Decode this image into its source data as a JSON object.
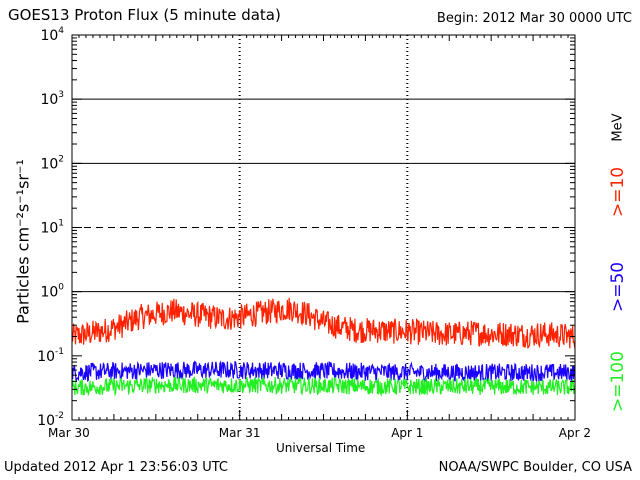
{
  "header": {
    "title": "GOES13 Proton Flux (5 minute data)",
    "begin": "Begin: 2012 Mar 30 0000 UTC"
  },
  "footer": {
    "updated": "Updated 2012 Apr  1 23:56:03 UTC",
    "credit": "NOAA/SWPC Boulder, CO USA"
  },
  "chart_data": {
    "type": "line",
    "title": "GOES13 Proton Flux (5 minute data)",
    "xlabel": "Universal Time",
    "ylabel": "Particles cm⁻²s⁻¹sr⁻¹",
    "yscale": "log",
    "ylim": [
      0.01,
      10000
    ],
    "xlim_days": [
      0,
      3
    ],
    "x_ticks": [
      {
        "day": 0,
        "label": "Mar 30"
      },
      {
        "day": 1,
        "label": "Mar 31"
      },
      {
        "day": 2,
        "label": "Apr 1"
      },
      {
        "day": 3,
        "label": "Apr 2"
      }
    ],
    "y_ticks": [
      {
        "value": 0.01,
        "base": "10",
        "exp": "-2"
      },
      {
        "value": 0.1,
        "base": "10",
        "exp": "-1"
      },
      {
        "value": 1,
        "base": "10",
        "exp": "0"
      },
      {
        "value": 10,
        "base": "10",
        "exp": "1"
      },
      {
        "value": 100,
        "base": "10",
        "exp": "2"
      },
      {
        "value": 1000,
        "base": "10",
        "exp": "3"
      },
      {
        "value": 10000,
        "base": "10",
        "exp": "4"
      }
    ],
    "thresholds": [
      {
        "value": 1,
        "style": "solid"
      },
      {
        "value": 10,
        "style": "dashed"
      },
      {
        "value": 100,
        "style": "solid"
      },
      {
        "value": 1000,
        "style": "solid"
      }
    ],
    "legend_unit": "MeV",
    "series": [
      {
        "name": ">=10",
        "color": "#ff2200",
        "x": [
          0,
          0.1,
          0.2,
          0.3,
          0.4,
          0.5,
          0.6,
          0.7,
          0.8,
          0.9,
          1.0,
          1.1,
          1.2,
          1.3,
          1.4,
          1.5,
          1.6,
          1.7,
          1.8,
          1.9,
          2.0,
          2.1,
          2.2,
          2.3,
          2.4,
          2.5,
          2.6,
          2.7,
          2.8,
          2.9,
          3.0
        ],
        "y": [
          0.2,
          0.22,
          0.25,
          0.3,
          0.4,
          0.45,
          0.5,
          0.45,
          0.42,
          0.38,
          0.4,
          0.45,
          0.5,
          0.55,
          0.45,
          0.33,
          0.28,
          0.25,
          0.25,
          0.24,
          0.24,
          0.23,
          0.22,
          0.22,
          0.23,
          0.22,
          0.22,
          0.21,
          0.22,
          0.21,
          0.2
        ]
      },
      {
        "name": ">=50",
        "color": "#1a00ff",
        "x": [
          0,
          0.5,
          1.0,
          1.5,
          2.0,
          2.5,
          3.0
        ],
        "y": [
          0.055,
          0.06,
          0.06,
          0.058,
          0.055,
          0.055,
          0.055
        ]
      },
      {
        "name": ">=100",
        "color": "#22ee22",
        "x": [
          0,
          0.5,
          1.0,
          1.5,
          2.0,
          2.5,
          3.0
        ],
        "y": [
          0.032,
          0.035,
          0.035,
          0.034,
          0.033,
          0.033,
          0.032
        ]
      }
    ]
  }
}
